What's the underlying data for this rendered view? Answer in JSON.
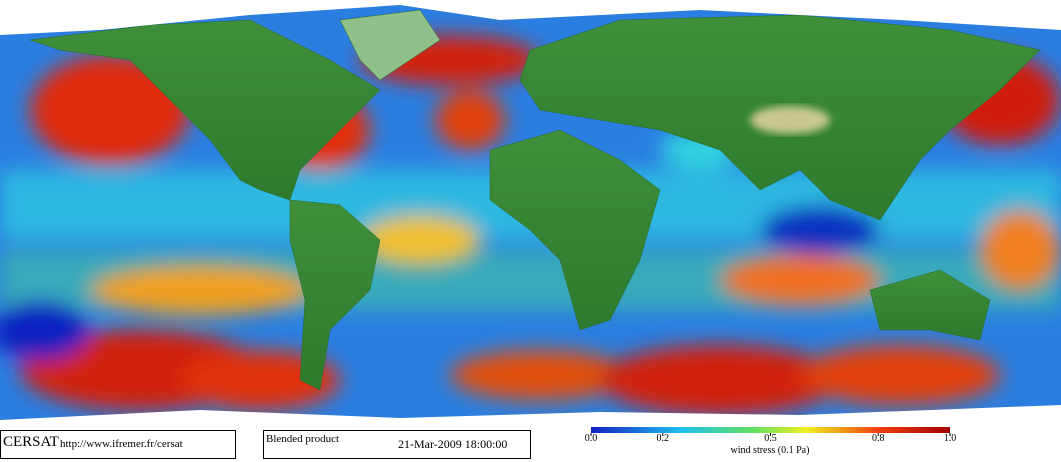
{
  "footer": {
    "logo": "CERSAT",
    "url": "http://www.ifremer.fr/cersat",
    "product": "Blended product",
    "date": "21-Mar-2009 18:00:00"
  },
  "colorbar": {
    "label": "wind stress (0.1 Pa)",
    "lim": [
      0,
      1
    ],
    "ticks": [
      {
        "value": 0,
        "label": "0.0"
      },
      {
        "value": 0.2,
        "label": "0.2"
      },
      {
        "value": 0.5,
        "label": "0.5"
      },
      {
        "value": 0.8,
        "label": "0.8"
      },
      {
        "value": 1,
        "label": "1.0"
      }
    ]
  }
}
